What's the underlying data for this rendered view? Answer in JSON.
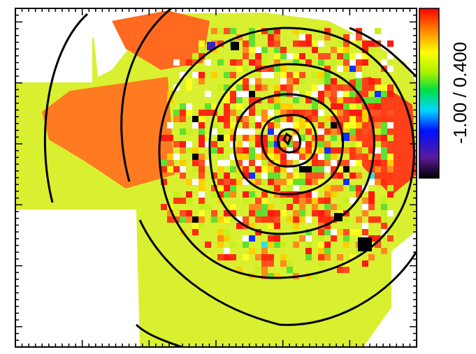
{
  "colorbar": {
    "label": "-1.00 / 0.400"
  }
}
